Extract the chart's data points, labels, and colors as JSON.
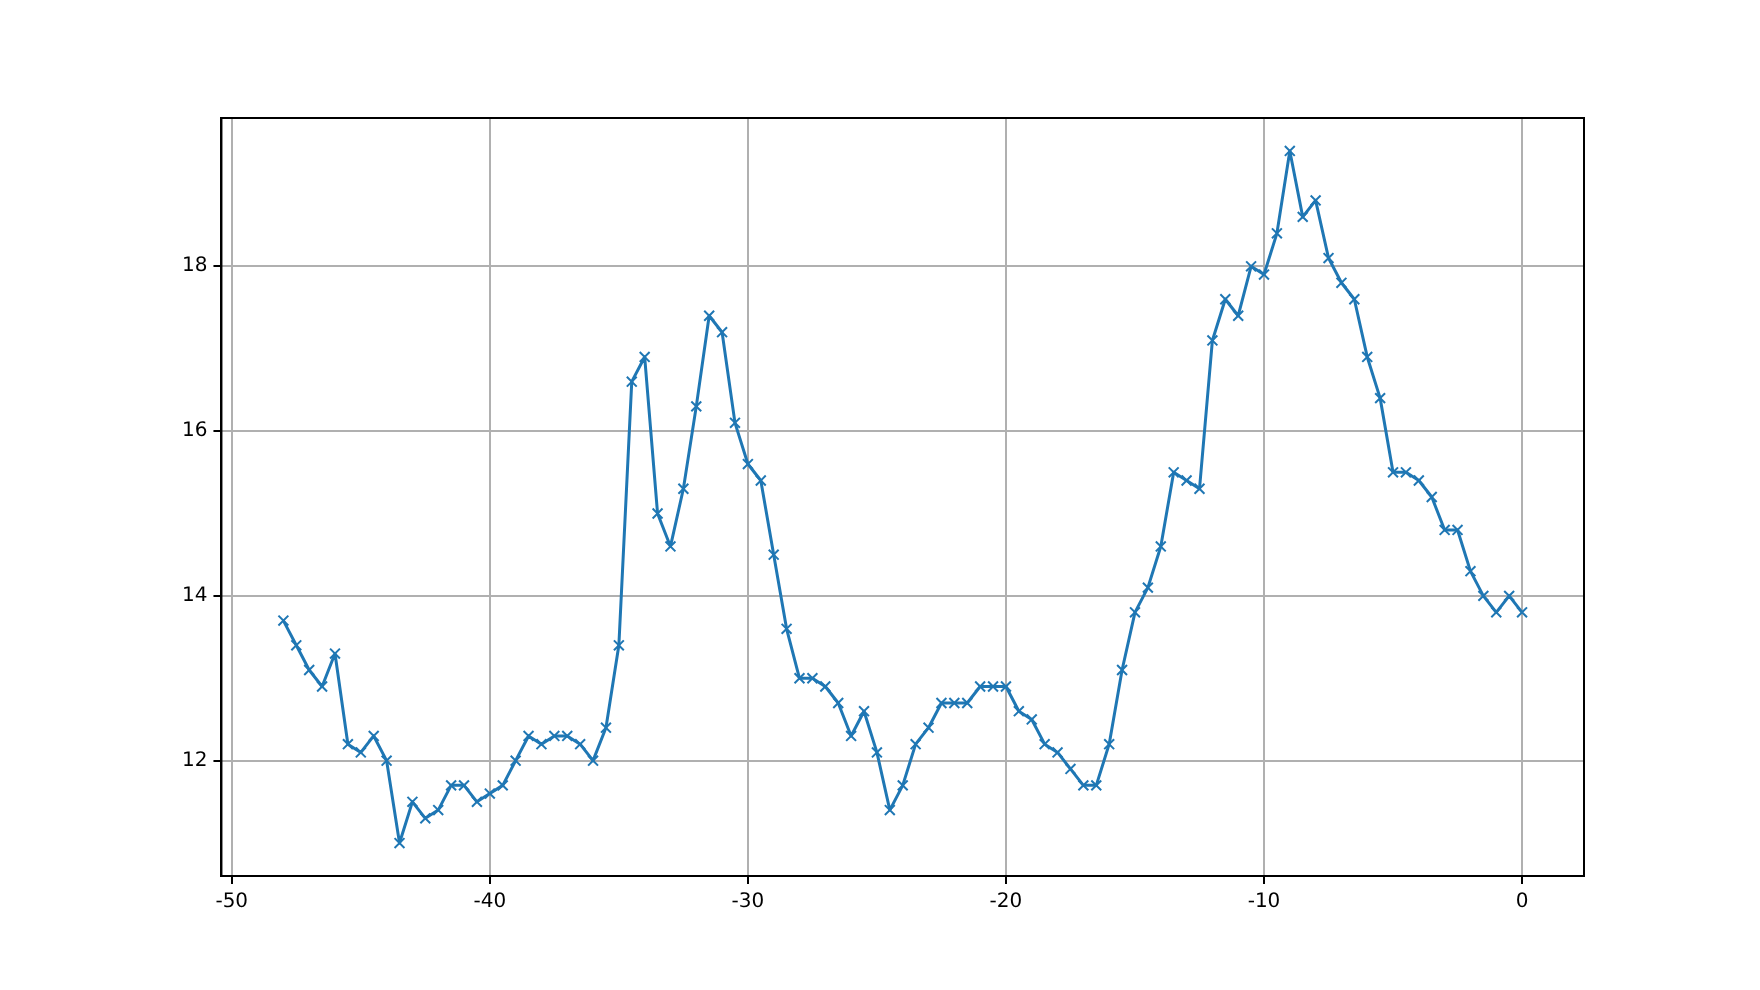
{
  "chart_data": {
    "type": "line",
    "x": [
      -48,
      -47.5,
      -47,
      -46.5,
      -46,
      -45.5,
      -45,
      -44.5,
      -44,
      -43.5,
      -43,
      -42.5,
      -42,
      -41.5,
      -41,
      -40.5,
      -40,
      -39.5,
      -39,
      -38.5,
      -38,
      -37.5,
      -37,
      -36.5,
      -36,
      -35.5,
      -35,
      -34.5,
      -34,
      -33.5,
      -33,
      -32.5,
      -32,
      -31.5,
      -31,
      -30.5,
      -30,
      -29.5,
      -29,
      -28.5,
      -28,
      -27.5,
      -27,
      -26.5,
      -26,
      -25.5,
      -25,
      -24.5,
      -24,
      -23.5,
      -23,
      -22.5,
      -22,
      -21.5,
      -21,
      -20.5,
      -20,
      -19.5,
      -19,
      -18.5,
      -18,
      -17.5,
      -17,
      -16.5,
      -16,
      -15.5,
      -15,
      -14.5,
      -14,
      -13.5,
      -13,
      -12.5,
      -12,
      -11.5,
      -11,
      -10.5,
      -10,
      -9.5,
      -9,
      -8.5,
      -8,
      -7.5,
      -7,
      -6.5,
      -6,
      -5.5,
      -5,
      -4.5,
      -4,
      -3.5,
      -3,
      -2.5,
      -2,
      -1.5,
      -1,
      -0.5,
      0
    ],
    "series": [
      {
        "color": "#1f77b4",
        "values": [
          13.7,
          13.4,
          13.1,
          12.9,
          13.3,
          12.2,
          12.1,
          12.3,
          12.0,
          11.0,
          11.5,
          11.3,
          11.4,
          11.7,
          11.7,
          11.5,
          11.6,
          11.7,
          12.0,
          12.3,
          12.2,
          12.3,
          12.3,
          12.2,
          12.0,
          12.4,
          13.4,
          16.6,
          16.9,
          15.0,
          14.6,
          15.3,
          16.3,
          17.4,
          17.2,
          16.1,
          15.6,
          15.4,
          14.5,
          13.6,
          13.0,
          13.0,
          12.9,
          12.7,
          12.3,
          12.6,
          12.1,
          11.4,
          11.7,
          12.2,
          12.4,
          12.7,
          12.7,
          12.7,
          12.9,
          12.9,
          12.9,
          12.6,
          12.5,
          12.2,
          12.1,
          11.9,
          11.7,
          11.7,
          12.2,
          13.1,
          13.8,
          14.1,
          14.6,
          15.5,
          15.4,
          15.3,
          17.1,
          17.6,
          17.4,
          18.0,
          17.9,
          18.4,
          19.4,
          18.6,
          18.8,
          18.1,
          17.8,
          17.6,
          16.9,
          16.4,
          15.5,
          15.5,
          15.4,
          15.2,
          14.8,
          14.8,
          14.3,
          14.0,
          13.8,
          14.0,
          13.8
        ]
      }
    ],
    "xlim": [
      -50.4,
      2.4
    ],
    "ylim": [
      10.6,
      19.8
    ],
    "xticks": [
      -50,
      -40,
      -30,
      -20,
      -10,
      0
    ],
    "yticks": [
      12,
      14,
      16,
      18
    ],
    "grid": true,
    "marker": "cross",
    "line_style": "solid"
  }
}
